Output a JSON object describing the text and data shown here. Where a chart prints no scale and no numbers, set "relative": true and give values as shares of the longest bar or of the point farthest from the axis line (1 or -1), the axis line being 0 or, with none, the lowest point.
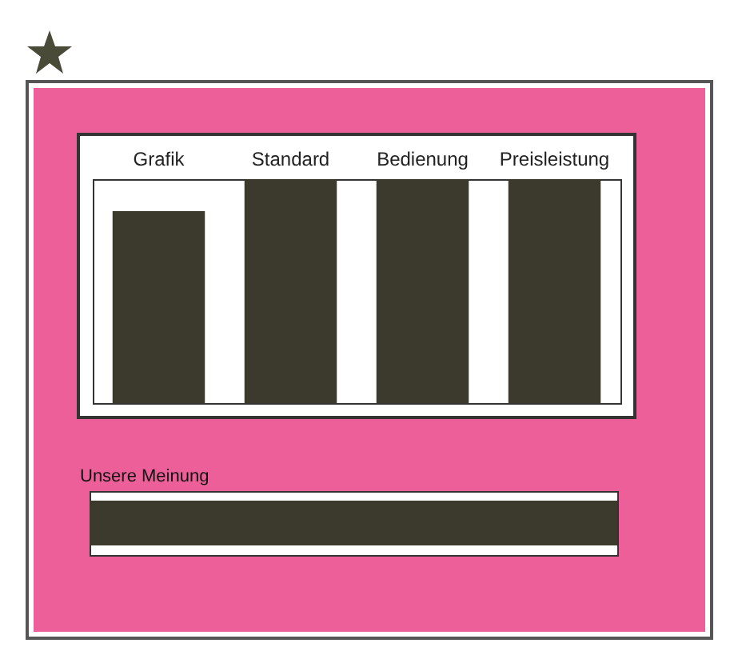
{
  "chart_data": [
    {
      "type": "bar",
      "relative": true,
      "categories": [
        "Grafik",
        "Standard",
        "Bedienung",
        "Preisleistung"
      ],
      "values": [
        0.857,
        1,
        1,
        1
      ],
      "color": "#3b3a2c"
    },
    {
      "type": "bar",
      "orientation": "horizontal",
      "relative": true,
      "title": "Unsere Meinung",
      "categories": [
        null
      ],
      "values": [
        1
      ],
      "color": "#3b3a2c"
    }
  ]
}
